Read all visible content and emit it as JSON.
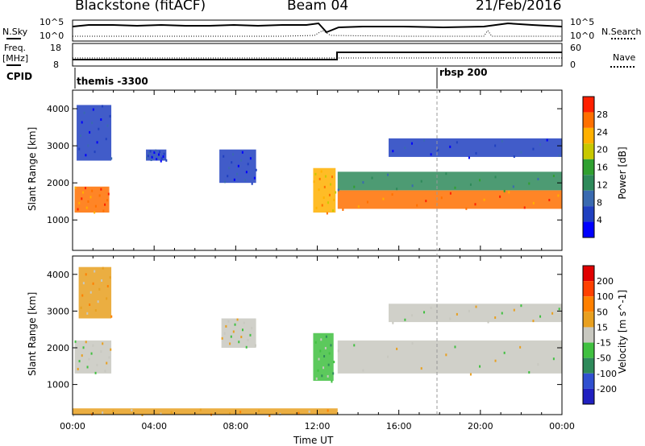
{
  "header": {
    "station": "Blackstone (fitACF)",
    "beam": "Beam 04",
    "date": "21/Feb/2016"
  },
  "noise_panel": {
    "left_label": "N.Sky",
    "left_ticks": [
      "10^5",
      "10^0"
    ],
    "right_label": "N.Search",
    "right_ticks": [
      "10^5",
      "10^0"
    ]
  },
  "freq_panel": {
    "left_label_1": "Freq.",
    "left_label_2": "[MHz]",
    "left_ticks": [
      "18",
      "8"
    ],
    "right_label": "Nave",
    "right_ticks": [
      "60",
      "0"
    ]
  },
  "cpid": {
    "label": "CPID",
    "entries": [
      "themis -3300",
      "rbsp 200"
    ]
  },
  "x_axis": {
    "label": "Time UT",
    "ticks": [
      "00:00",
      "04:00",
      "08:00",
      "12:00",
      "16:00",
      "20:00",
      "00:00"
    ]
  },
  "colors": {
    "power_scale": [
      "#0000ff",
      "#2040c0",
      "#3a6ab0",
      "#2e8a5a",
      "#30a030",
      "#c8c800",
      "#ffb000",
      "#ff7000",
      "#ff2000"
    ],
    "velocity_scale": [
      "#2020c0",
      "#3050d0",
      "#2e8a5a",
      "#40c040",
      "#c8c8c0",
      "#e8a020",
      "#ff8000",
      "#ff4000",
      "#e00000"
    ]
  },
  "chart_data": [
    {
      "type": "heatmap",
      "name": "power-panel",
      "ylabel": "Slant Range [km]",
      "xlabel": "Time UT",
      "xlim": [
        0,
        24
      ],
      "ylim": [
        180,
        4500
      ],
      "yticks": [
        1000,
        2000,
        3000,
        4000
      ],
      "colorbar_label": "Power [dB]",
      "colorbar_ticks": [
        "28",
        "24",
        "20",
        "16",
        "12",
        "8",
        "4"
      ],
      "bands": [
        {
          "t0": 0.1,
          "t1": 1.8,
          "r0": 1200,
          "r1": 1900,
          "level": 7
        },
        {
          "t0": 0.2,
          "t1": 1.9,
          "r0": 2600,
          "r1": 4100,
          "level": 1
        },
        {
          "t0": 3.6,
          "t1": 4.6,
          "r0": 2600,
          "r1": 2900,
          "level": 1
        },
        {
          "t0": 7.2,
          "t1": 9.0,
          "r0": 2000,
          "r1": 2900,
          "level": 1
        },
        {
          "t0": 11.8,
          "t1": 12.9,
          "r0": 1200,
          "r1": 2400,
          "level": 6
        },
        {
          "t0": 13.0,
          "t1": 24.0,
          "r0": 1300,
          "r1": 1800,
          "level": 7
        },
        {
          "t0": 13.0,
          "t1": 24.0,
          "r0": 1800,
          "r1": 2300,
          "level": 3
        },
        {
          "t0": 15.5,
          "t1": 24.0,
          "r0": 2700,
          "r1": 3200,
          "level": 1
        }
      ]
    },
    {
      "type": "heatmap",
      "name": "velocity-panel",
      "ylabel": "Slant Range [km]",
      "xlabel": "Time UT",
      "xlim": [
        0,
        24
      ],
      "ylim": [
        180,
        4500
      ],
      "yticks": [
        1000,
        2000,
        3000,
        4000
      ],
      "colorbar_label": "Velocity [m s^-1]",
      "colorbar_ticks": [
        "200",
        "100",
        "50",
        "15",
        "-15",
        "-50",
        "-100",
        "-200"
      ],
      "bands": [
        {
          "t0": 0.1,
          "t1": 1.9,
          "r0": 1300,
          "r1": 2200,
          "level": 4
        },
        {
          "t0": 0.3,
          "t1": 1.9,
          "r0": 2800,
          "r1": 4200,
          "level": 5
        },
        {
          "t0": 7.3,
          "t1": 9.0,
          "r0": 2000,
          "r1": 2800,
          "level": 4
        },
        {
          "t0": 11.8,
          "t1": 12.8,
          "r0": 1100,
          "r1": 2400,
          "level": 3
        },
        {
          "t0": 13.0,
          "t1": 24.0,
          "r0": 1300,
          "r1": 2200,
          "level": 4
        },
        {
          "t0": 15.5,
          "t1": 24.0,
          "r0": 2700,
          "r1": 3200,
          "level": 4
        },
        {
          "t0": 0.0,
          "t1": 13.0,
          "r0": 180,
          "r1": 350,
          "level": 5
        }
      ]
    }
  ]
}
